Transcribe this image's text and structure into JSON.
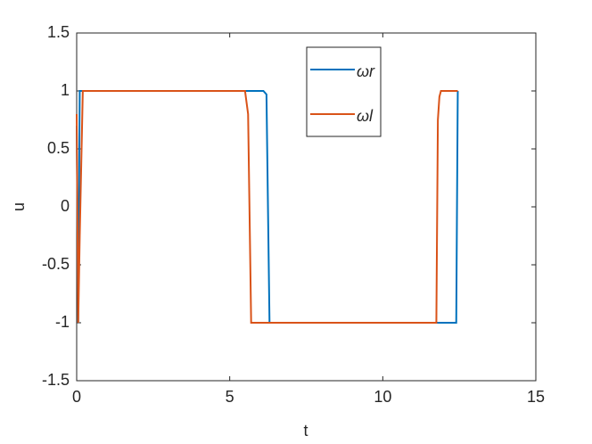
{
  "chart_data": {
    "type": "line",
    "xlabel": "t",
    "ylabel": "u",
    "xlim": [
      0,
      15
    ],
    "ylim": [
      -1.5,
      1.5
    ],
    "xticks": [
      0,
      5,
      10,
      15
    ],
    "yticks": [
      -1.5,
      -1,
      -0.5,
      0,
      0.5,
      1,
      1.5
    ],
    "legend": "north",
    "series": [
      {
        "name": "ωr",
        "color": "#0072bd",
        "x": [
          0,
          0.05,
          0.1,
          6.1,
          6.2,
          6.3,
          12.4,
          12.45
        ],
        "values": [
          0.7,
          -1,
          1,
          1,
          0.97,
          -1,
          -1,
          1
        ]
      },
      {
        "name": "ωl",
        "color": "#d95319",
        "x": [
          0,
          0.05,
          0.1,
          0.2,
          5.5,
          5.6,
          5.7,
          11.75,
          11.8,
          11.85,
          11.9,
          12.45
        ],
        "values": [
          0.8,
          -1,
          -0.25,
          1,
          1,
          0.8,
          -1,
          -1,
          0.75,
          0.95,
          1,
          1
        ]
      }
    ]
  }
}
